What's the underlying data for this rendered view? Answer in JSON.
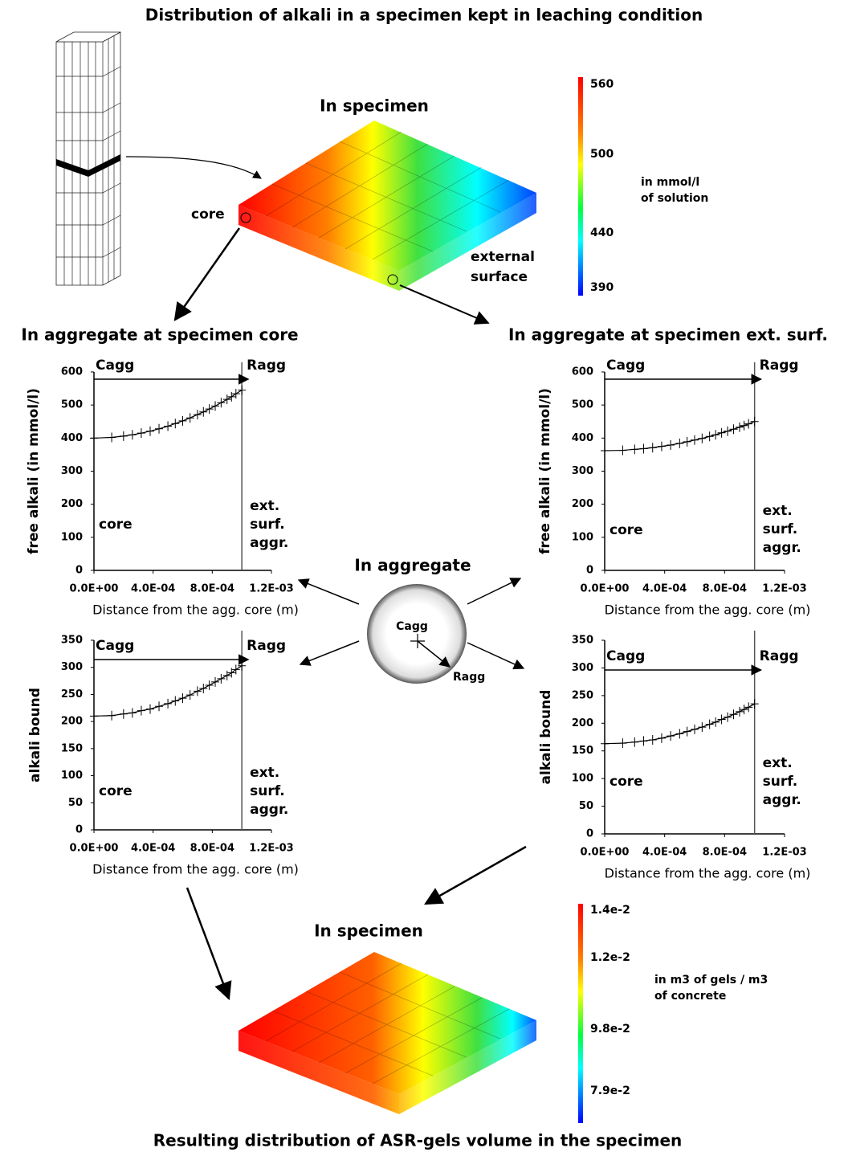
{
  "diagram": {
    "title": "Distribution of alkali in a specimen kept in leaching condition",
    "specimen_top": {
      "title": "In specimen",
      "core": "core",
      "surface": [
        "external",
        "surface"
      ]
    },
    "colorbar_top": {
      "labels": [
        "560",
        "500",
        "440",
        "390"
      ],
      "unit": [
        "in mmol/l",
        "of solution"
      ]
    },
    "left_heading": "In aggregate at specimen core",
    "right_heading": "In aggregate at specimen ext. surf.",
    "aggregate": {
      "title": "In aggregate",
      "center": "Cagg",
      "radius": "Ragg"
    },
    "specimen_bottom": {
      "title": "In specimen"
    },
    "colorbar_bottom": {
      "labels": [
        "1.4e-2",
        "1.2e-2",
        "9.8e-2",
        "7.9e-2"
      ],
      "unit": [
        "in m3 of gels / m3",
        "of concrete"
      ]
    },
    "caption": "Resulting distribution of ASR-gels volume in the specimen"
  },
  "chart_data": [
    {
      "type": "line",
      "y_label": "free alkali (in mmol/l)",
      "x_label": "Distance from the agg. core (m)",
      "annotations": {
        "start": "Cagg",
        "end": "Ragg",
        "core": "core",
        "surface": [
          "ext.",
          "surf.",
          "aggr."
        ]
      },
      "x": [
        0,
        0.00012,
        0.0002,
        0.00026,
        0.00032,
        0.00038,
        0.00044,
        0.0005,
        0.00055,
        0.0006,
        0.00065,
        0.0007,
        0.00074,
        0.00078,
        0.00082,
        0.00086,
        0.0009,
        0.00093,
        0.00096,
        0.001
      ],
      "values": [
        400,
        402,
        406,
        410,
        415,
        421,
        428,
        436,
        444,
        452,
        461,
        471,
        479,
        488,
        497,
        507,
        517,
        525,
        534,
        545
      ],
      "color": "#000000",
      "xlim": [
        0,
        0.0012
      ],
      "ylim": [
        0,
        600
      ],
      "xticks": [
        {
          "value": 0,
          "label": "0.0E+00"
        },
        {
          "value": 0.0004,
          "label": "4.0E-04"
        },
        {
          "value": 0.0008,
          "label": "8.0E-04"
        },
        {
          "value": 0.0012,
          "label": "1.2E-03"
        }
      ],
      "yticks": [
        0,
        100,
        200,
        300,
        400,
        500,
        600
      ]
    },
    {
      "type": "line",
      "y_label": "free alkali (in mmol/l)",
      "x_label": "Distance from the agg. core (m)",
      "annotations": {
        "start": "Cagg",
        "end": "Ragg",
        "core": "core",
        "surface": [
          "ext.",
          "surf.",
          "aggr."
        ]
      },
      "x": [
        0,
        0.00012,
        0.0002,
        0.00026,
        0.00032,
        0.00038,
        0.00044,
        0.0005,
        0.00055,
        0.0006,
        0.00065,
        0.0007,
        0.00074,
        0.00078,
        0.00082,
        0.00086,
        0.0009,
        0.00093,
        0.00096,
        0.001
      ],
      "values": [
        362,
        363,
        366,
        368,
        371,
        375,
        379,
        384,
        389,
        394,
        399,
        405,
        410,
        416,
        421,
        427,
        433,
        438,
        443,
        450
      ],
      "color": "#000000",
      "xlim": [
        0,
        0.0012
      ],
      "ylim": [
        0,
        600
      ],
      "xticks": [
        {
          "value": 0,
          "label": "0.0E+00"
        },
        {
          "value": 0.0004,
          "label": "4.0E-04"
        },
        {
          "value": 0.0008,
          "label": "8.0E-04"
        },
        {
          "value": 0.0012,
          "label": "1.2E-03"
        }
      ],
      "yticks": [
        0,
        100,
        200,
        300,
        400,
        500,
        600
      ]
    },
    {
      "type": "line",
      "y_label": "alkali bound",
      "x_label": "Distance from the agg. core (m)",
      "annotations": {
        "start": "Cagg",
        "end": "Ragg",
        "core": "core",
        "surface": [
          "ext.",
          "surf.",
          "aggr."
        ]
      },
      "x": [
        0,
        0.00012,
        0.0002,
        0.00026,
        0.00032,
        0.00038,
        0.00044,
        0.0005,
        0.00055,
        0.0006,
        0.00065,
        0.0007,
        0.00074,
        0.00078,
        0.00082,
        0.00086,
        0.0009,
        0.00093,
        0.00096,
        0.001
      ],
      "values": [
        210,
        211,
        214,
        216,
        220,
        223,
        228,
        233,
        238,
        243,
        249,
        256,
        261,
        267,
        273,
        279,
        285,
        290,
        296,
        303
      ],
      "color": "#000000",
      "xlim": [
        0,
        0.0012
      ],
      "ylim": [
        0,
        350
      ],
      "xticks": [
        {
          "value": 0,
          "label": "0.0E+00"
        },
        {
          "value": 0.0004,
          "label": "4.0E-04"
        },
        {
          "value": 0.0008,
          "label": "8.0E-04"
        },
        {
          "value": 0.0012,
          "label": "1.2E-03"
        }
      ],
      "yticks": [
        0,
        50,
        100,
        150,
        200,
        250,
        300,
        350
      ]
    },
    {
      "type": "line",
      "y_label": "alkali bound",
      "x_label": "Distance from the agg. core (m)",
      "annotations": {
        "start": "Cagg",
        "end": "Ragg",
        "core": "core",
        "surface": [
          "ext.",
          "surf.",
          "aggr."
        ]
      },
      "x": [
        0,
        0.00012,
        0.0002,
        0.00026,
        0.00032,
        0.00038,
        0.00044,
        0.0005,
        0.00055,
        0.0006,
        0.00065,
        0.0007,
        0.00074,
        0.00078,
        0.00082,
        0.00086,
        0.0009,
        0.00093,
        0.00096,
        0.001
      ],
      "values": [
        163,
        164,
        166,
        168,
        170,
        173,
        177,
        181,
        185,
        189,
        193,
        198,
        202,
        207,
        211,
        216,
        221,
        225,
        229,
        235
      ],
      "color": "#000000",
      "xlim": [
        0,
        0.0012
      ],
      "ylim": [
        0,
        350
      ],
      "xticks": [
        {
          "value": 0,
          "label": "0.0E+00"
        },
        {
          "value": 0.0004,
          "label": "4.0E-04"
        },
        {
          "value": 0.0008,
          "label": "8.0E-04"
        },
        {
          "value": 0.0012,
          "label": "1.2E-03"
        }
      ],
      "yticks": [
        0,
        50,
        100,
        150,
        200,
        250,
        300,
        350
      ]
    }
  ]
}
